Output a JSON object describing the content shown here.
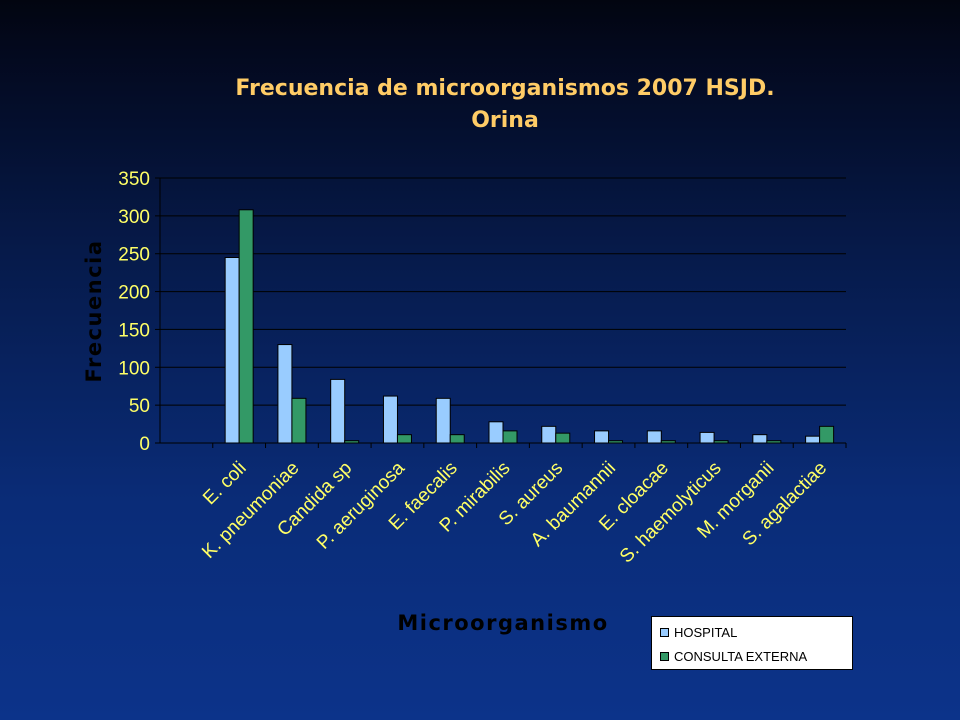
{
  "slide": {
    "title_line1": "Frecuencia de microorganismos 2007 HSJD.",
    "title_line2": "Orina"
  },
  "chart_data": {
    "type": "bar",
    "title": "Frecuencia de microorganismos 2007 HSJD. Orina",
    "xlabel": "Microorganismo",
    "ylabel": "Frecuencia",
    "ylim": [
      0,
      350
    ],
    "yticks": [
      0,
      50,
      100,
      150,
      200,
      250,
      300,
      350
    ],
    "grid": true,
    "legend_position": "bottom-right",
    "categories": [
      "E. coli",
      "K. pneumoniae",
      "Candida sp",
      "P. aeruginosa",
      "E. faecalis",
      "P. mirabilis",
      "S. aureus",
      "A. baumannii",
      "E. cloacae",
      "S. haemolyticus",
      "M. morganii",
      "S. agalactiae"
    ],
    "series": [
      {
        "name": "HOSPITAL",
        "color": "#99ccff",
        "values": [
          245,
          130,
          84,
          62,
          59,
          28,
          22,
          16,
          16,
          14,
          11,
          9
        ]
      },
      {
        "name": "CONSULTA EXTERNA",
        "color": "#339966",
        "values": [
          308,
          59,
          3,
          11,
          11,
          16,
          13,
          3,
          3,
          3,
          3,
          22
        ]
      }
    ]
  }
}
